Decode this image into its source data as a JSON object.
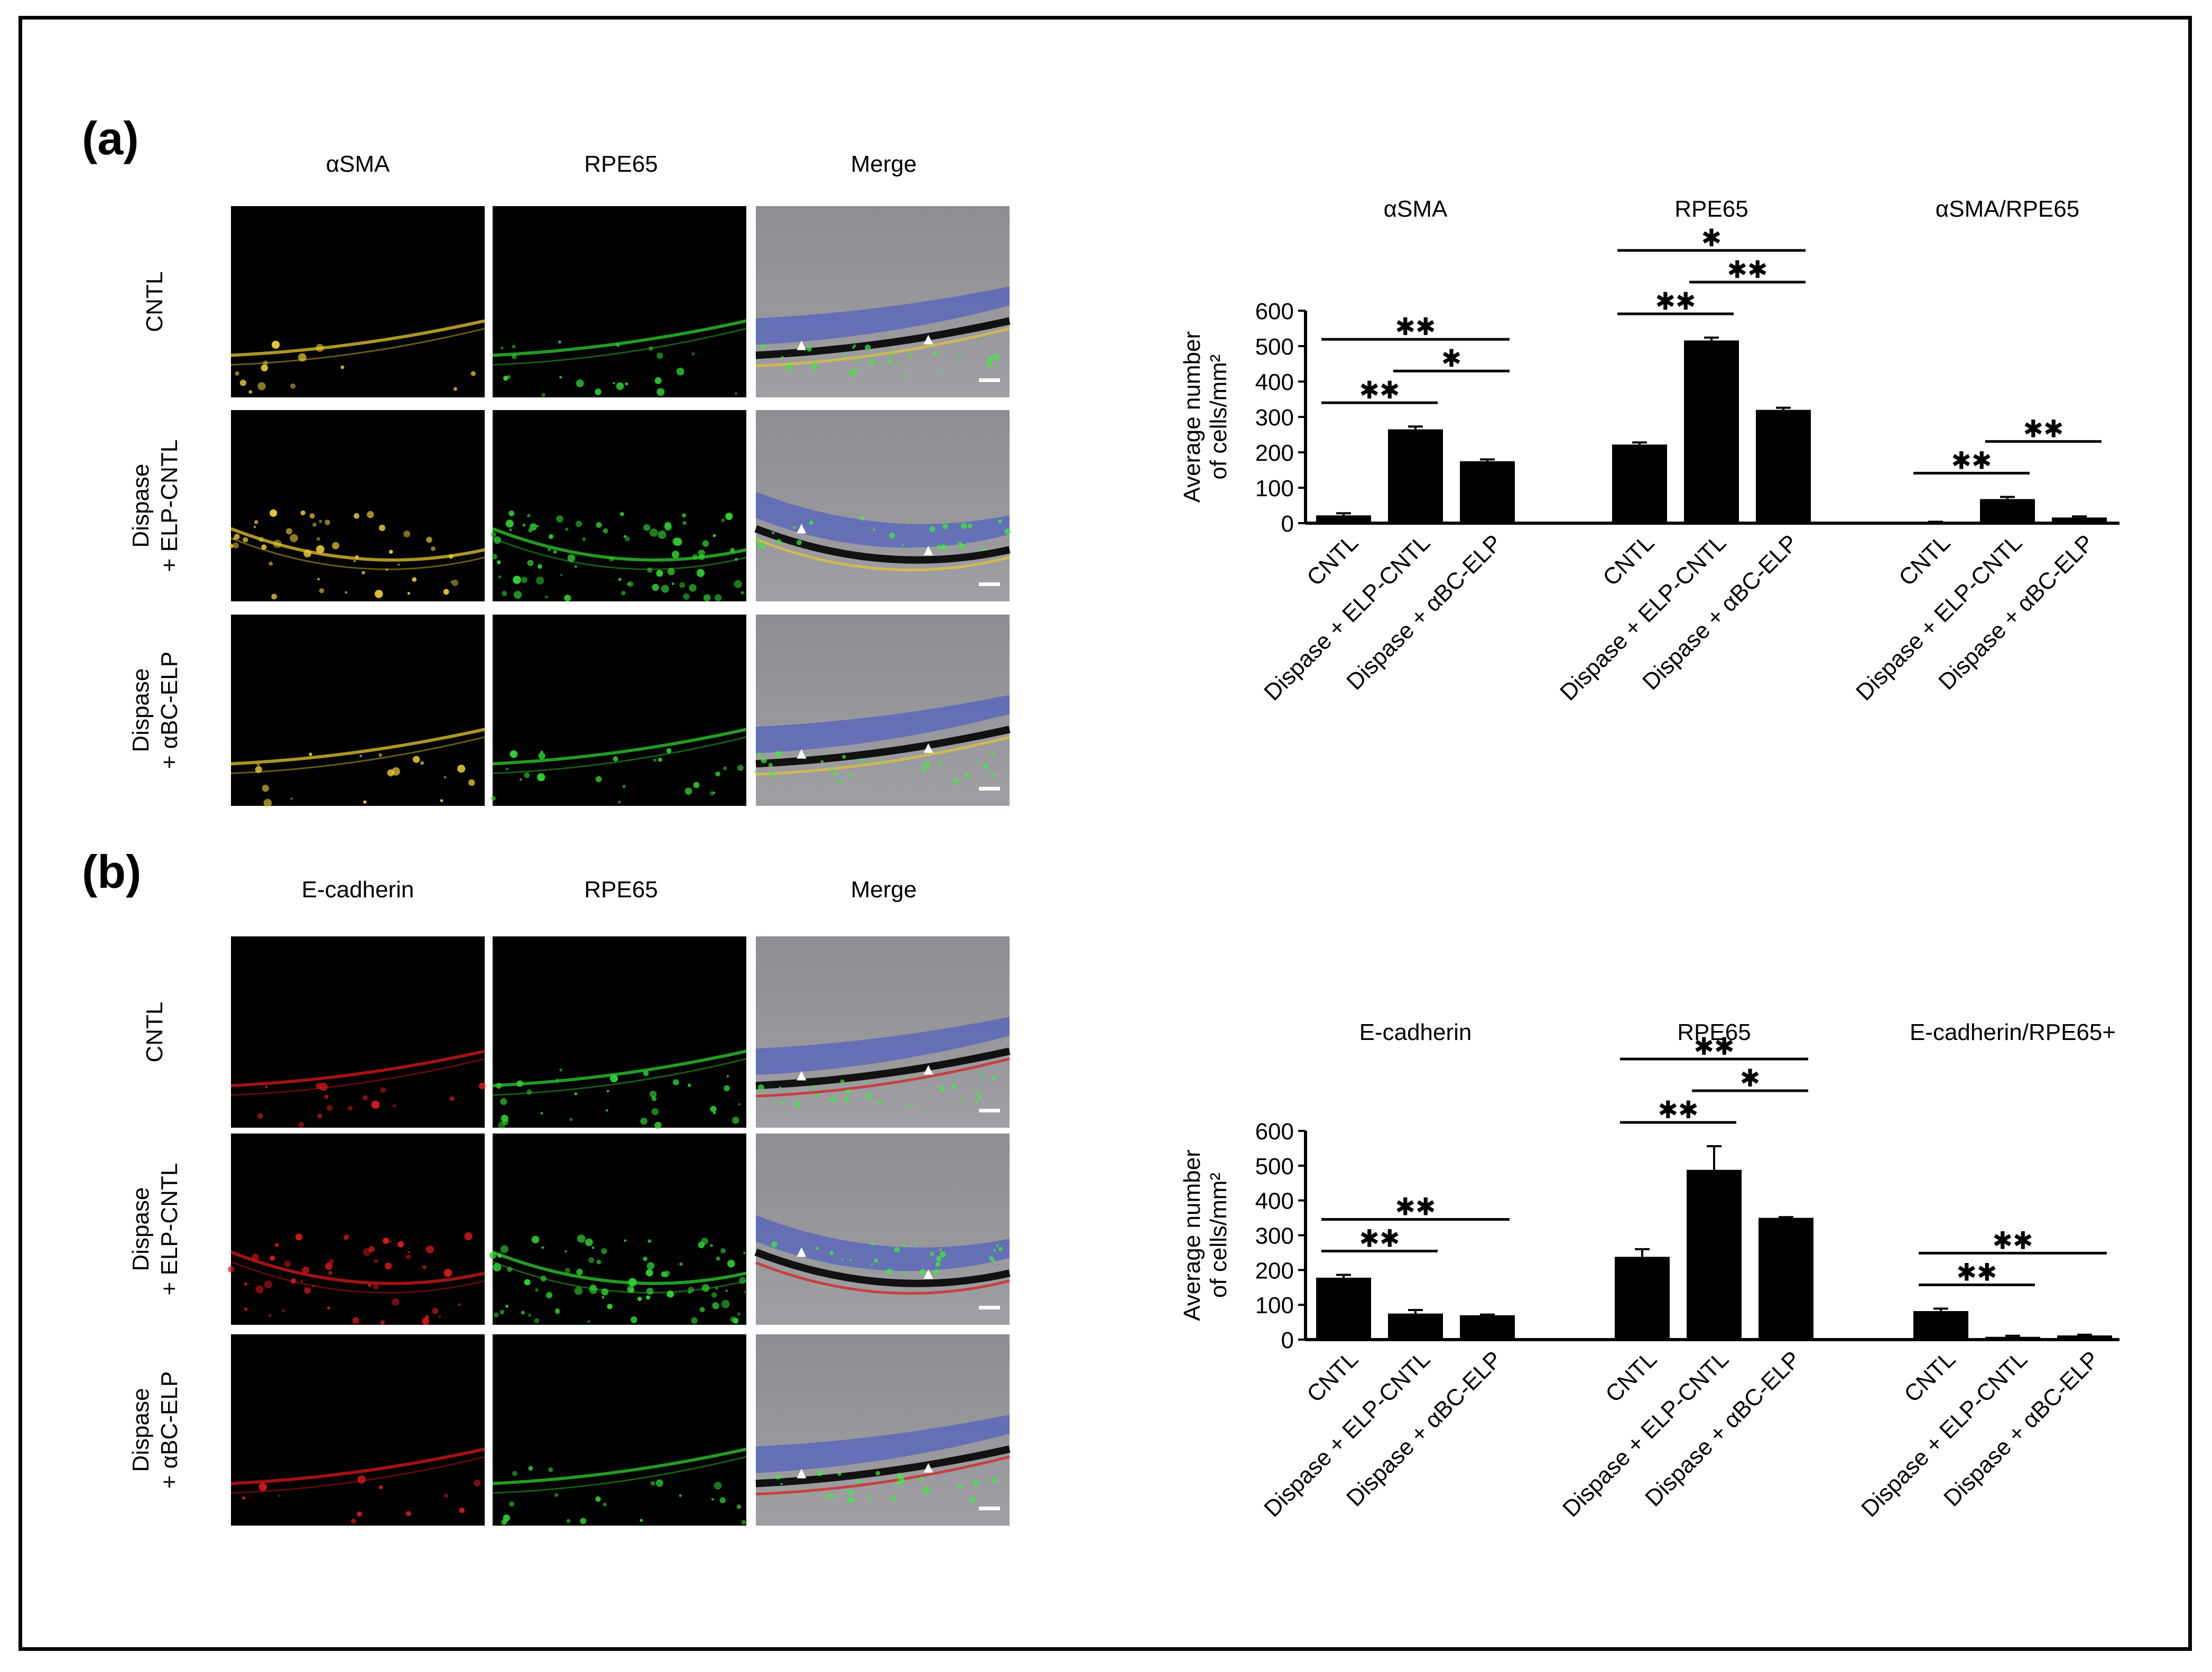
{
  "panels": {
    "a": {
      "label": "(a)",
      "columns": [
        "αSMA",
        "RPE65",
        "Merge"
      ],
      "rows": [
        "CNTL",
        "Dispase\n+ ELP-CNTL",
        "Dispase\n+ αBC-ELP"
      ],
      "channel_colors": [
        "#e6c830",
        "#2fcf2f",
        "merge"
      ]
    },
    "b": {
      "label": "(b)",
      "columns": [
        "E-cadherin",
        "RPE65",
        "Merge"
      ],
      "rows": [
        "CNTL",
        "Dispase\n+ ELP-CNTL",
        "Dispase\n+ αBC-ELP"
      ],
      "channel_colors": [
        "#d81818",
        "#2fcf2f",
        "merge"
      ]
    }
  },
  "chart_data": [
    {
      "type": "bar",
      "ylabel": "Average number\nof cells/mm²",
      "ylim": [
        0,
        600
      ],
      "yticks": [
        0,
        100,
        200,
        300,
        400,
        500,
        600
      ],
      "groups": [
        {
          "title": "αSMA",
          "categories": [
            "CNTL",
            "Dispase + ELP-CNTL",
            "Dispase + αBC-ELP"
          ],
          "values": [
            22,
            265,
            175
          ],
          "errors": [
            6,
            8,
            5
          ],
          "significance": [
            {
              "from": 0,
              "to": 2,
              "label": "✱✱"
            },
            {
              "from": 0,
              "to": 1,
              "label": "✱✱"
            },
            {
              "from": 1,
              "to": 2,
              "label": "✱"
            }
          ]
        },
        {
          "title": "RPE65",
          "categories": [
            "CNTL",
            "Dispase + ELP-CNTL",
            "Dispase + αBC-ELP"
          ],
          "values": [
            222,
            516,
            320
          ],
          "errors": [
            6,
            8,
            6
          ],
          "significance": [
            {
              "from": 0,
              "to": 1,
              "label": "✱✱"
            },
            {
              "from": 0,
              "to": 2,
              "label": "✱"
            },
            {
              "from": 1,
              "to": 2,
              "label": "✱✱"
            }
          ]
        },
        {
          "title": "αSMA/RPE65",
          "categories": [
            "CNTL",
            "Dispase + ELP-CNTL",
            "Dispase + αBC-ELP"
          ],
          "values": [
            2,
            68,
            16
          ],
          "errors": [
            2,
            6,
            3
          ],
          "significance": [
            {
              "from": 0,
              "to": 1,
              "label": "✱✱"
            },
            {
              "from": 1,
              "to": 2,
              "label": "✱✱"
            }
          ]
        }
      ]
    },
    {
      "type": "bar",
      "ylabel": "Average number\nof cells/mm²",
      "ylim": [
        0,
        600
      ],
      "yticks": [
        0,
        100,
        200,
        300,
        400,
        500,
        600
      ],
      "groups": [
        {
          "title": "E-cadherin",
          "categories": [
            "CNTL",
            "Dispase + ELP-CNTL",
            "Dispase + αBC-ELP"
          ],
          "values": [
            178,
            75,
            70
          ],
          "errors": [
            8,
            10,
            2
          ],
          "significance": [
            {
              "from": 0,
              "to": 2,
              "label": "✱✱"
            },
            {
              "from": 0,
              "to": 1,
              "label": "✱✱"
            }
          ]
        },
        {
          "title": "RPE65",
          "categories": [
            "CNTL",
            "Dispase + ELP-CNTL",
            "Dispase + αBC-ELP"
          ],
          "values": [
            238,
            488,
            350
          ],
          "errors": [
            22,
            68,
            2
          ],
          "significance": [
            {
              "from": 0,
              "to": 2,
              "label": "✱✱"
            },
            {
              "from": 0,
              "to": 1,
              "label": "✱✱"
            },
            {
              "from": 1,
              "to": 2,
              "label": "✱"
            }
          ]
        },
        {
          "title": "E-cadherin/RPE65+",
          "categories": [
            "CNTL",
            "Dispase + ELP-CNTL",
            "Dispase + αBC-ELP"
          ],
          "values": [
            82,
            8,
            12
          ],
          "errors": [
            7,
            3,
            2
          ],
          "significance": [
            {
              "from": 0,
              "to": 2,
              "label": "✱✱"
            },
            {
              "from": 0,
              "to": 1,
              "label": "✱✱"
            }
          ]
        }
      ]
    }
  ]
}
